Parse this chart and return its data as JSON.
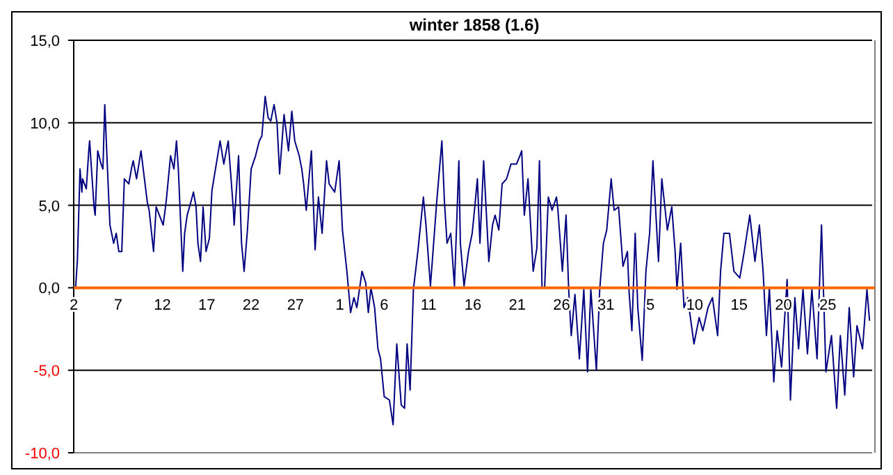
{
  "chart_data": {
    "type": "line",
    "title": "winter 1858 (1.6)",
    "series": [
      {
        "color": "#000080",
        "x": [
          "1857-12-02T05:00",
          "1857-12-02T10:00",
          "1857-12-02T17:00",
          "1857-12-02T22:00",
          "1857-12-03T00:00",
          "1857-12-03T10:00",
          "1857-12-03T17:00",
          "1857-12-03T19:00",
          "1857-12-04T00:00",
          "1857-12-04T07:00",
          "1857-12-04T10:00",
          "1857-12-04T17:00",
          "1857-12-05T02:00",
          "1857-12-05T07:00",
          "1857-12-05T12:00",
          "1857-12-05T22:00",
          "1857-12-06T02:00",
          "1857-12-06T12:00",
          "1857-12-06T19:00",
          "1857-12-07T02:00",
          "1857-12-07T10:00",
          "1857-12-07T17:00",
          "1857-12-08T05:00",
          "1857-12-08T12:00",
          "1857-12-08T17:00",
          "1857-12-09T02:00",
          "1857-12-09T14:00",
          "1857-12-10T07:00",
          "1857-12-10T12:00",
          "1857-12-11T00:00",
          "1857-12-11T07:00",
          "1857-12-12T02:00",
          "1857-12-12T10:00",
          "1857-12-12T22:00",
          "1857-12-13T07:00",
          "1857-12-13T14:00",
          "1857-12-13T19:00",
          "1857-12-14T07:00",
          "1857-12-14T12:00",
          "1857-12-14T19:00",
          "1857-12-15T05:00",
          "1857-12-15T12:00",
          "1857-12-15T19:00",
          "1857-12-16T00:00",
          "1857-12-16T07:00",
          "1857-12-16T14:00",
          "1857-12-16T22:00",
          "1857-12-17T07:00",
          "1857-12-17T14:00",
          "1857-12-18T12:00",
          "1857-12-18T22:00",
          "1857-12-19T10:00",
          "1857-12-20T00:00",
          "1857-12-20T02:00",
          "1857-12-20T14:00",
          "1857-12-20T22:00",
          "1857-12-21T05:00",
          "1857-12-21T14:00",
          "1857-12-22T00:00",
          "1857-12-22T12:00",
          "1857-12-22T22:00",
          "1857-12-23T05:00",
          "1857-12-23T14:00",
          "1857-12-23T22:00",
          "1857-12-24T05:00",
          "1857-12-24T14:00",
          "1857-12-24T22:00",
          "1857-12-25T05:00",
          "1857-12-25T17:00",
          "1857-12-26T05:00",
          "1857-12-26T14:00",
          "1857-12-26T22:00",
          "1857-12-27T10:00",
          "1857-12-27T17:00",
          "1857-12-27T22:00",
          "1857-12-28T05:00",
          "1857-12-28T19:00",
          "1857-12-29T05:00",
          "1857-12-29T14:00",
          "1857-12-30T00:00",
          "1857-12-30T12:00",
          "1857-12-30T19:00",
          "1857-12-31T10:00",
          "1857-12-31T22:00",
          "1858-01-01T07:00",
          "1858-01-01T19:00",
          "1858-01-02T05:00",
          "1858-01-02T14:00",
          "1858-01-02T22:00",
          "1858-01-03T12:00",
          "1858-01-03T22:00",
          "1858-01-04T05:00",
          "1858-01-04T12:00",
          "1858-01-04T22:00",
          "1858-01-05T07:00",
          "1858-01-05T14:00",
          "1858-01-06T00:00",
          "1858-01-06T14:00",
          "1858-01-07T00:00",
          "1858-01-07T10:00",
          "1858-01-07T22:00",
          "1858-01-08T07:00",
          "1858-01-08T14:00",
          "1858-01-08T22:00",
          "1858-01-09T07:00",
          "1858-01-09T19:00",
          "1858-01-10T10:00",
          "1858-01-10T17:00",
          "1858-01-11T05:00",
          "1858-01-11T12:00",
          "1858-01-11T22:00",
          "1858-01-12T12:00",
          "1858-01-12T19:00",
          "1858-01-13T02:00",
          "1858-01-13T12:00",
          "1858-01-13T22:00",
          "1858-01-14T10:00",
          "1858-01-14T14:00",
          "1858-01-15T00:00",
          "1858-01-15T12:00",
          "1858-01-15T22:00",
          "1858-01-16T05:00",
          "1858-01-16T12:00",
          "1858-01-16T19:00",
          "1858-01-17T05:00",
          "1858-01-17T14:00",
          "1858-01-17T19:00",
          "1858-01-18T05:00",
          "1858-01-18T12:00",
          "1858-01-18T22:00",
          "1858-01-19T07:00",
          "1858-01-19T19:00",
          "1858-01-20T07:00",
          "1858-01-20T22:00",
          "1858-01-21T07:00",
          "1858-01-21T12:00",
          "1858-01-21T19:00",
          "1858-01-22T05:00",
          "1858-01-22T19:00",
          "1858-01-23T05:00",
          "1858-01-23T12:00",
          "1858-01-23T19:00",
          "1858-01-24T02:00",
          "1858-01-24T12:00",
          "1858-01-24T22:00",
          "1858-01-25T10:00",
          "1858-01-25T14:00",
          "1858-01-26T02:00",
          "1858-01-26T12:00",
          "1858-01-26T19:00",
          "1858-01-27T02:00",
          "1858-01-27T12:00",
          "1858-01-28T00:00",
          "1858-01-28T12:00",
          "1858-01-28T22:00",
          "1858-01-29T07:00",
          "1858-01-29T22:00",
          "1858-01-30T07:00",
          "1858-01-30T17:00",
          "1858-01-31T02:00",
          "1858-01-31T14:00",
          "1858-01-31T22:00",
          "1858-02-01T10:00",
          "1858-02-01T22:00",
          "1858-02-02T10:00",
          "1858-02-02T14:00",
          "1858-02-02T22:00",
          "1858-02-03T07:00",
          "1858-02-03T14:00",
          "1858-02-04T02:00",
          "1858-02-04T12:00",
          "1858-02-04T22:00",
          "1858-02-05T07:00",
          "1858-02-05T22:00",
          "1858-02-06T07:00",
          "1858-02-06T22:00",
          "1858-02-07T10:00",
          "1858-02-07T19:00",
          "1858-02-08T00:00",
          "1858-02-08T10:00",
          "1858-02-08T19:00",
          "1858-02-09T05:00",
          "1858-02-09T22:00",
          "1858-02-10T12:00",
          "1858-02-10T22:00",
          "1858-02-11T12:00",
          "1858-02-12T00:00",
          "1858-02-12T14:00",
          "1858-02-12T22:00",
          "1858-02-13T07:00",
          "1858-02-13T22:00",
          "1858-02-14T10:00",
          "1858-02-15T02:00",
          "1858-02-15T14:00",
          "1858-02-16T05:00",
          "1858-02-16T19:00",
          "1858-02-17T07:00",
          "1858-02-17T17:00",
          "1858-02-18T02:00",
          "1858-02-18T10:00",
          "1858-02-18T22:00",
          "1858-02-19T07:00",
          "1858-02-19T19:00",
          "1858-02-20T10:00",
          "1858-02-20T19:00",
          "1858-02-21T07:00",
          "1858-02-21T17:00",
          "1858-02-22T05:00",
          "1858-02-22T17:00",
          "1858-02-23T05:00",
          "1858-02-23T19:00",
          "1858-02-24T07:00",
          "1858-02-24T19:00",
          "1858-02-25T10:00",
          "1858-02-26T00:00",
          "1858-02-26T10:00",
          "1858-02-26T22:00",
          "1858-02-27T10:00",
          "1858-02-27T22:00",
          "1858-02-28T07:00",
          "1858-02-28T22:00",
          "1858-03-01T10:00",
          "1858-03-01T17:00"
        ],
        "values": [
          0,
          1.7,
          7.2,
          5.8,
          6.6,
          6.0,
          8.4,
          8.9,
          7.2,
          4.9,
          4.4,
          8.3,
          7.5,
          7.2,
          11.1,
          5.8,
          3.8,
          2.7,
          3.3,
          2.2,
          2.2,
          6.6,
          6.3,
          7.2,
          7.7,
          6.6,
          8.3,
          5.2,
          4.7,
          2.2,
          4.9,
          3.8,
          5.2,
          8.0,
          7.2,
          8.9,
          7.2,
          1.0,
          3.3,
          4.4,
          5.2,
          5.8,
          4.9,
          2.7,
          1.6,
          4.9,
          2.2,
          3.0,
          5.9,
          8.9,
          7.5,
          8.9,
          4.7,
          3.8,
          8.0,
          2.7,
          1.0,
          3.5,
          7.2,
          8.0,
          8.9,
          9.2,
          11.6,
          10.3,
          10.1,
          11.1,
          10.0,
          6.9,
          10.5,
          8.3,
          10.7,
          8.9,
          8.0,
          7.2,
          6.3,
          4.7,
          8.3,
          2.3,
          5.5,
          3.3,
          7.7,
          6.3,
          5.8,
          7.7,
          3.5,
          1.0,
          -1.5,
          -0.6,
          -1.2,
          1.0,
          0.3,
          -1.5,
          0,
          -1.2,
          -3.7,
          -4.3,
          -6.6,
          -6.8,
          -8.3,
          -3.4,
          -7.1,
          -7.3,
          -3.4,
          -6.2,
          -0.1,
          2.2,
          5.5,
          3.8,
          0.1,
          2.2,
          5.2,
          8.9,
          5.2,
          2.7,
          3.3,
          0.1,
          7.7,
          2.7,
          0.1,
          2.2,
          3.3,
          4.9,
          6.6,
          2.7,
          7.7,
          3.8,
          1.6,
          3.8,
          4.4,
          3.5,
          6.3,
          6.6,
          7.5,
          7.5,
          8.0,
          8.3,
          4.4,
          6.6,
          1.0,
          2.4,
          7.7,
          0,
          0,
          5.5,
          4.7,
          5.5,
          4.7,
          1.0,
          4.4,
          -0.1,
          -2.9,
          -0.4,
          -4.3,
          -0.1,
          -5.1,
          -0.1,
          -5.0,
          -0.1,
          2.7,
          3.5,
          6.6,
          4.7,
          4.9,
          1.3,
          2.2,
          -0.1,
          -2.6,
          3.3,
          -1.2,
          -4.4,
          1.0,
          3.3,
          7.7,
          1.6,
          6.6,
          3.5,
          4.9,
          2.2,
          -0.1,
          2.7,
          -1.2,
          -0.6,
          -3.4,
          -1.8,
          -2.6,
          -1.2,
          -0.6,
          -2.9,
          1.0,
          3.3,
          3.3,
          1.0,
          0.6,
          2.2,
          4.4,
          1.6,
          3.8,
          1.0,
          -2.9,
          0,
          -5.7,
          -2.6,
          -4.8,
          0.5,
          -6.8,
          -0.6,
          -3.7,
          -0.1,
          -4.0,
          -0.1,
          -4.3,
          3.8,
          -5.1,
          -2.9,
          -7.3,
          -2.9,
          -6.5,
          -1.2,
          -5.4,
          -2.3,
          -3.7,
          -0.1,
          -2.0
        ]
      }
    ],
    "xlim": [
      "1857-12-02",
      "1858-03-02"
    ],
    "xticks": [
      {
        "value": "1857-12-02",
        "label": "2"
      },
      {
        "value": "1857-12-07",
        "label": "7"
      },
      {
        "value": "1857-12-12",
        "label": "12"
      },
      {
        "value": "1857-12-17",
        "label": "17"
      },
      {
        "value": "1857-12-22",
        "label": "22"
      },
      {
        "value": "1857-12-27",
        "label": "27"
      },
      {
        "value": "1858-01-01",
        "label": "1"
      },
      {
        "value": "1858-01-06",
        "label": "6"
      },
      {
        "value": "1858-01-11",
        "label": "11"
      },
      {
        "value": "1858-01-16",
        "label": "16"
      },
      {
        "value": "1858-01-21",
        "label": "21"
      },
      {
        "value": "1858-01-26",
        "label": "26"
      },
      {
        "value": "1858-01-31",
        "label": "31"
      },
      {
        "value": "1858-02-05",
        "label": "5"
      },
      {
        "value": "1858-02-10",
        "label": "10"
      },
      {
        "value": "1858-02-15",
        "label": "15"
      },
      {
        "value": "1858-02-20",
        "label": "20"
      },
      {
        "value": "1858-02-25",
        "label": "25"
      }
    ],
    "ylim": [
      -10,
      15
    ],
    "yticks": [
      {
        "value": -10,
        "label": "-10,0"
      },
      {
        "value": -5,
        "label": "-5,0"
      },
      {
        "value": 0,
        "label": "0,0"
      },
      {
        "value": 5,
        "label": "5,0"
      },
      {
        "value": 10,
        "label": "10,0"
      },
      {
        "value": 15,
        "label": "15,0"
      }
    ],
    "grid": "y",
    "legend": false,
    "marker": "none"
  }
}
